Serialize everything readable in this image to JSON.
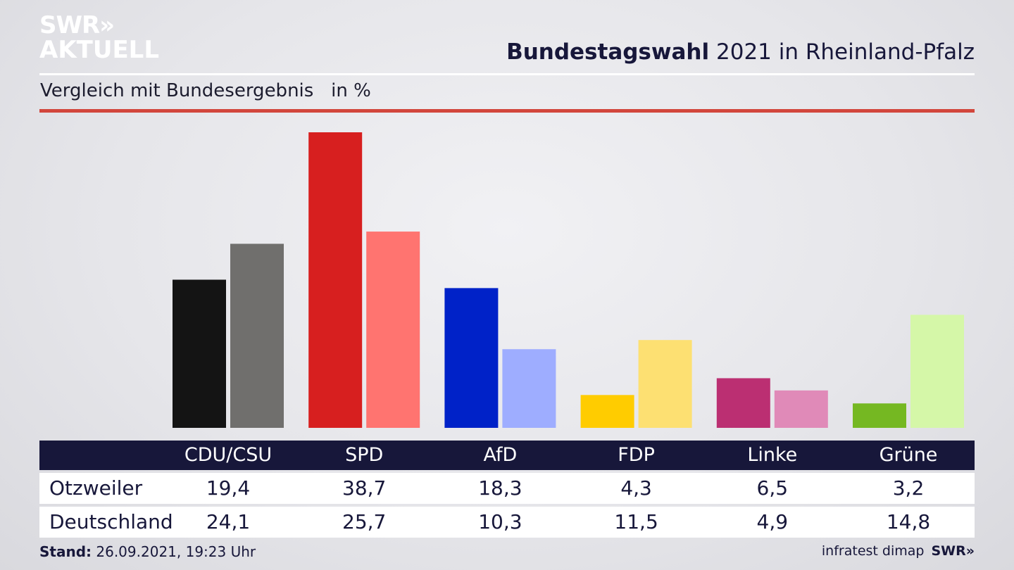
{
  "header": {
    "logo_line1": "SWR»",
    "logo_line2": "AKTUELL",
    "title_bold": "Bundestagswahl",
    "title_rest": "2021 in Rheinland-Pfalz",
    "subtitle": "Vergleich mit Bundesergebnis   in %"
  },
  "chart_data": {
    "type": "bar",
    "categories": [
      "CDU/CSU",
      "SPD",
      "AfD",
      "FDP",
      "Linke",
      "Grüne"
    ],
    "series": [
      {
        "name": "Otzweiler",
        "values": [
          19.4,
          38.7,
          18.3,
          4.3,
          6.5,
          3.2
        ]
      },
      {
        "name": "Deutschland",
        "values": [
          24.1,
          25.7,
          10.3,
          11.5,
          4.9,
          14.8
        ]
      }
    ],
    "colors": {
      "Otzweiler": [
        "#141414",
        "#d71f1f",
        "#0022c8",
        "#ffcc00",
        "#bb2f72",
        "#75b822"
      ],
      "Deutschland": [
        "#706f6d",
        "#ff7470",
        "#9eadff",
        "#fde072",
        "#e08ab8",
        "#d5f7a8"
      ]
    },
    "value_labels": {
      "Otzweiler": [
        "19,4",
        "38,7",
        "18,3",
        "4,3",
        "6,5",
        "3,2"
      ],
      "Deutschland": [
        "24,1",
        "25,7",
        "10,3",
        "11,5",
        "4,9",
        "14,8"
      ]
    },
    "ylim": [
      0,
      38.7
    ]
  },
  "footer": {
    "stand_label": "Stand:",
    "stand_value": "26.09.2021, 19:23 Uhr",
    "source": "infratest dimap",
    "brand": "SWR»"
  }
}
